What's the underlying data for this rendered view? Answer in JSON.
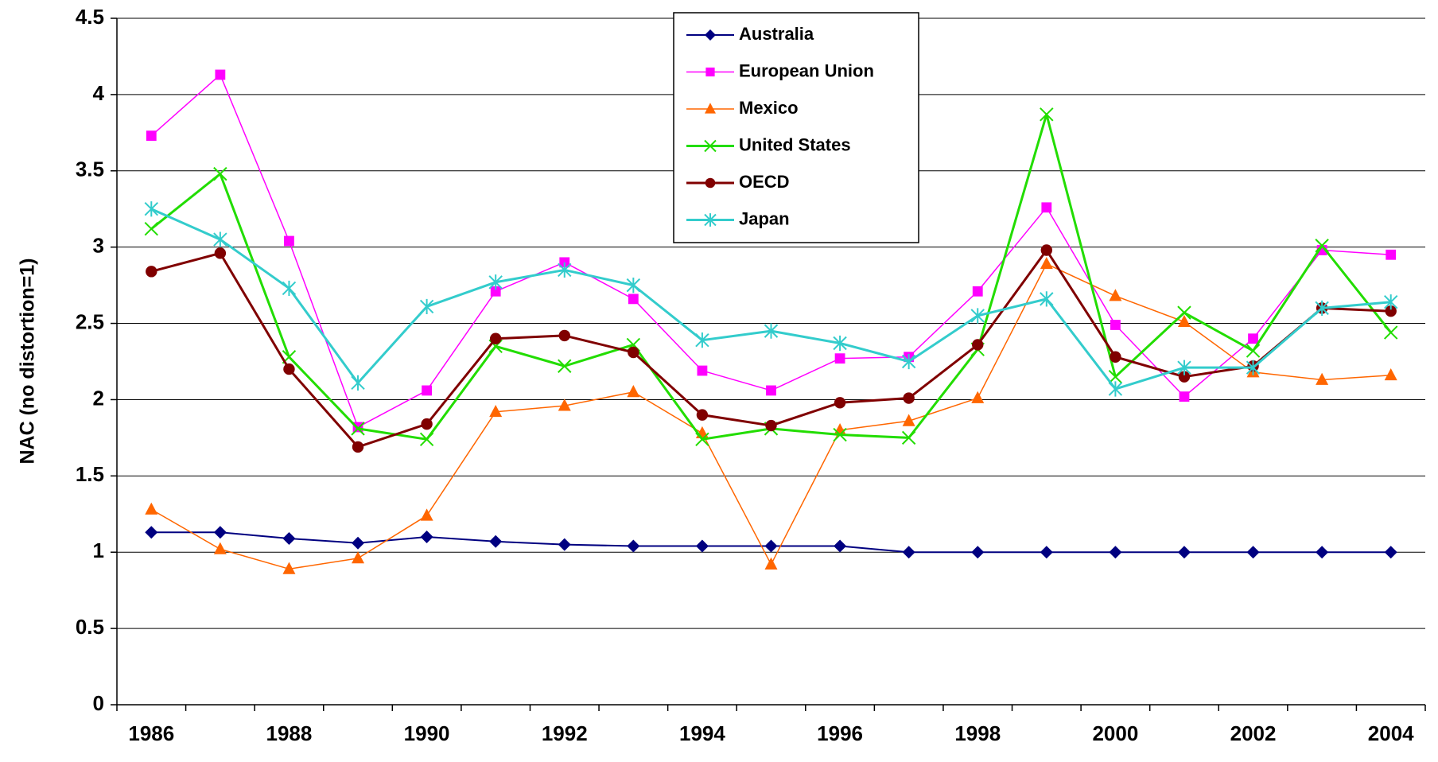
{
  "chart_data": {
    "type": "line",
    "y_label": "NAC (no distortion=1)",
    "categories": [
      "1986",
      null,
      "1988",
      null,
      "1990",
      null,
      "1992",
      null,
      "1994",
      null,
      "1996",
      null,
      "1998",
      null,
      "2000",
      null,
      "2002",
      null,
      "2004"
    ],
    "ylim": [
      0,
      4.5
    ],
    "yticks": [
      0,
      0.5,
      1,
      1.5,
      2,
      2.5,
      3,
      3.5,
      4,
      4.5
    ],
    "grid": true,
    "series": [
      {
        "name": "Australia",
        "color": "#000080",
        "marker": "diamond",
        "width": 2,
        "values": [
          1.13,
          1.13,
          1.09,
          1.06,
          1.1,
          1.07,
          1.05,
          1.04,
          1.04,
          1.04,
          1.04,
          1.0,
          1.0,
          1.0,
          1.0,
          1.0,
          1.0,
          1.0,
          1.0
        ]
      },
      {
        "name": "European Union",
        "color": "#ff00ff",
        "marker": "square",
        "width": 1.5,
        "values": [
          3.73,
          4.13,
          3.04,
          1.82,
          2.06,
          2.71,
          2.9,
          2.66,
          2.19,
          2.06,
          2.27,
          2.28,
          2.71,
          3.26,
          2.49,
          2.02,
          2.4,
          2.98,
          2.95
        ]
      },
      {
        "name": "Mexico",
        "color": "#ff6600",
        "marker": "triangle",
        "width": 1.5,
        "values": [
          1.28,
          1.02,
          0.89,
          0.96,
          1.24,
          1.92,
          1.96,
          2.05,
          1.78,
          0.92,
          1.8,
          1.86,
          2.01,
          2.89,
          2.68,
          2.51,
          2.18,
          2.13,
          2.16
        ]
      },
      {
        "name": "United States",
        "color": "#22dd00",
        "marker": "x",
        "width": 3,
        "values": [
          3.12,
          3.48,
          2.28,
          1.81,
          1.74,
          2.35,
          2.22,
          2.36,
          1.74,
          1.81,
          1.77,
          1.75,
          2.33,
          3.87,
          2.15,
          2.57,
          2.32,
          3.01,
          2.44
        ]
      },
      {
        "name": "OECD",
        "color": "#800000",
        "marker": "circle",
        "width": 3,
        "values": [
          2.84,
          2.96,
          2.2,
          1.69,
          1.84,
          2.4,
          2.42,
          2.31,
          1.9,
          1.83,
          1.98,
          2.01,
          2.36,
          2.98,
          2.28,
          2.15,
          2.22,
          2.6,
          2.58
        ]
      },
      {
        "name": "Japan",
        "color": "#33cccc",
        "marker": "asterisk",
        "width": 3,
        "values": [
          3.25,
          3.05,
          2.73,
          2.11,
          2.61,
          2.77,
          2.85,
          2.75,
          2.39,
          2.45,
          2.37,
          2.25,
          2.55,
          2.66,
          2.07,
          2.21,
          2.21,
          2.6,
          2.64
        ]
      }
    ]
  }
}
